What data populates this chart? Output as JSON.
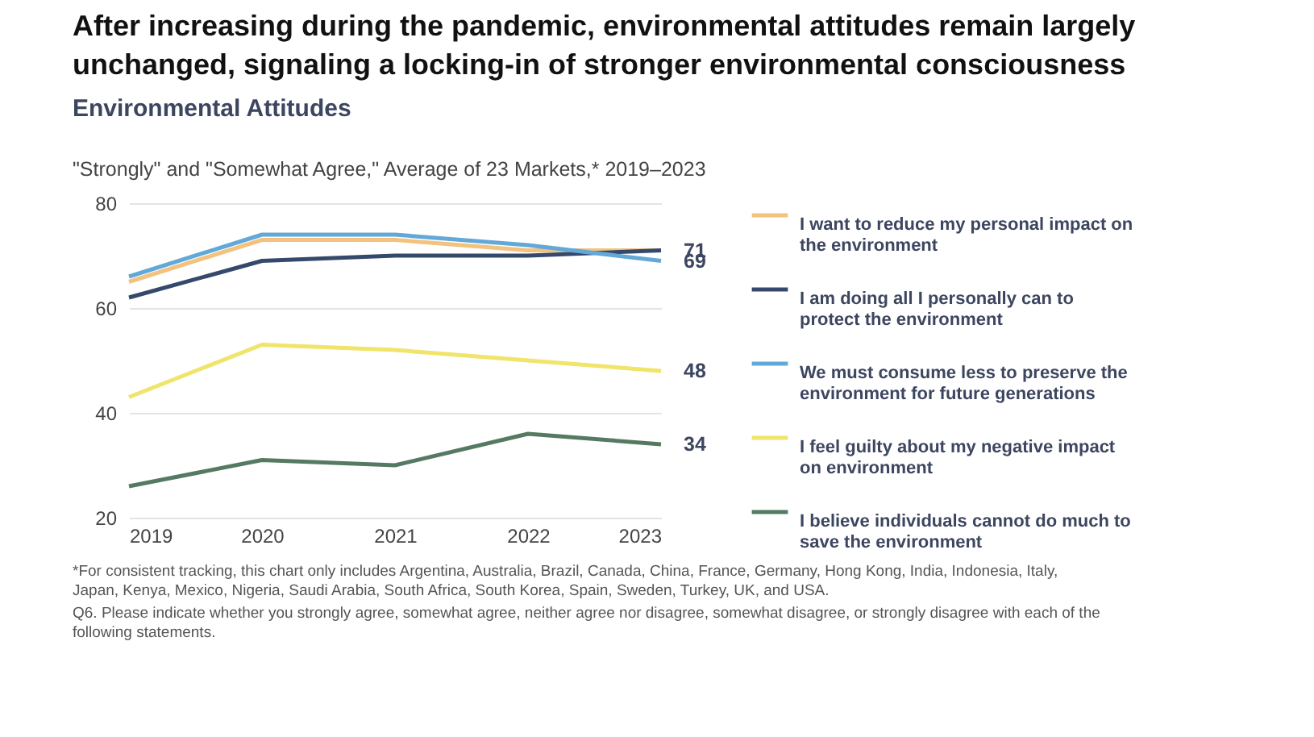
{
  "chart_data": {
    "type": "line",
    "title": "After increasing during the pandemic, environmental attitudes remain largely unchanged, signaling a locking-in of stronger environmental consciousness",
    "subtitle": "Environmental Attitudes",
    "x": [
      2019,
      2020,
      2021,
      2022,
      2023
    ],
    "xlim": [
      2019,
      2023
    ],
    "xticks": [
      2019,
      2020,
      2021,
      2022,
      2023
    ],
    "ylim": [
      20,
      80
    ],
    "yticks": [
      20,
      40,
      60,
      80
    ],
    "grid": "y",
    "legend": "right",
    "marker": "none",
    "line_style": "solid",
    "series": [
      {
        "name": "I want to reduce my personal impact on the environment",
        "color": "#f2c27e",
        "values": [
          65,
          73,
          73,
          71,
          71
        ],
        "value_labels": [
          null,
          null,
          null,
          null,
          "71"
        ]
      },
      {
        "name": "I am doing all I personally can to protect the environment",
        "color": "#34496b",
        "values": [
          62,
          69,
          70,
          70,
          71
        ]
      },
      {
        "name": "We must consume less to preserve the environment for future generations",
        "color": "#62a8d8",
        "values": [
          66,
          74,
          74,
          72,
          69
        ],
        "value_labels": [
          null,
          null,
          null,
          null,
          "69"
        ]
      },
      {
        "name": "I feel guilty about my negative impact on environment",
        "color": "#f0e46a",
        "values": [
          43,
          53,
          52,
          50,
          48
        ],
        "value_labels": [
          null,
          null,
          null,
          null,
          "48"
        ]
      },
      {
        "name": "I believe individuals cannot do much to save the environment",
        "color": "#557a62",
        "values": [
          26,
          31,
          30,
          36,
          34
        ],
        "value_labels": [
          null,
          null,
          null,
          null,
          "34"
        ]
      }
    ],
    "annotations": [
      "\"Strongly\" and \"Somewhat Agree,\" Average of 23 Markets,* 2019–2023",
      "*For consistent tracking, this chart only includes Argentina, Australia, Brazil, Canada, China, France, Germany, Hong Kong, India, Indonesia, Italy, Japan, Kenya, Mexico, Nigeria, Saudi Arabia, South Africa, South Korea, Spain, Sweden, Turkey, UK, and USA.",
      "Q6. Please indicate whether you strongly agree, somewhat agree, neither agree nor disagree, somewhat disagree, or strongly disagree with each of the following statements."
    ]
  }
}
